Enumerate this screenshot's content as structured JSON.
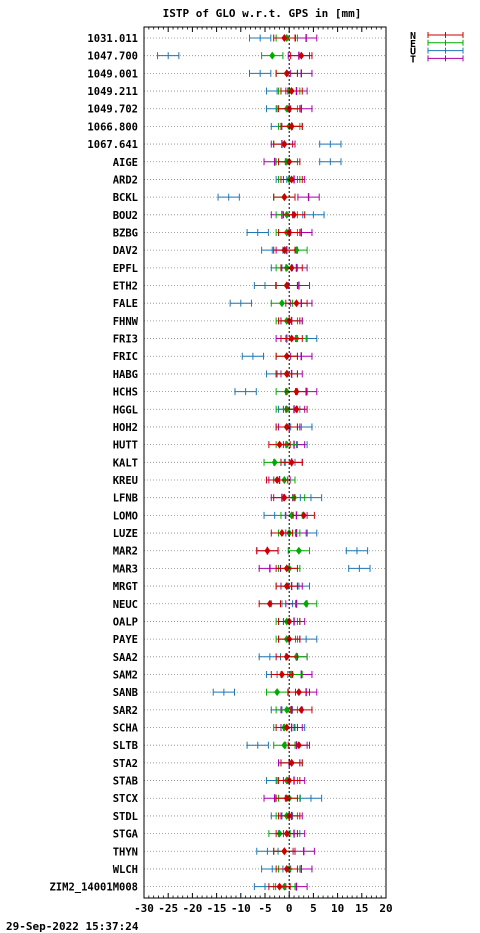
{
  "chart_data": {
    "type": "scatter",
    "title": "ISTP of GLO w.r.t. GPS in [mm]",
    "xlim": [
      -30,
      20
    ],
    "xticks": [
      -30,
      -25,
      -20,
      -15,
      -10,
      -5,
      0,
      5,
      10,
      15,
      20
    ],
    "xtick_labels": [
      "-30",
      "-25",
      "-20",
      "-15",
      "-10",
      "-5",
      "0",
      "5",
      "10",
      "15",
      "20"
    ],
    "grid": "dotted horizontal lines per station",
    "legend_position": "top-right",
    "components": [
      {
        "name": "N",
        "color": "#cc0000"
      },
      {
        "name": "E",
        "color": "#00aa00"
      },
      {
        "name": "U",
        "color": "#1f77b4"
      },
      {
        "name": "T",
        "color": "#aa00aa"
      }
    ],
    "stations": [
      {
        "name": "1031.011",
        "N": -1,
        "E": -0.5,
        "U": -6,
        "T": 3.5
      },
      {
        "name": "1047.700",
        "N": 2.5,
        "E": -3.5,
        "U": -25,
        "T": 2
      },
      {
        "name": "1049.001",
        "N": -0.5,
        "E": -0.5,
        "U": -6,
        "T": 2.5
      },
      {
        "name": "1049.211",
        "N": 0.5,
        "E": 0,
        "U": -2.5,
        "T": 1.5
      },
      {
        "name": "1049.702",
        "N": 0,
        "E": -0.5,
        "U": -2.5,
        "T": 2.5
      },
      {
        "name": "1066.800",
        "N": 0.5,
        "E": 0,
        "U": -1.5,
        "T": 0.5
      },
      {
        "name": "1067.641",
        "N": -1,
        "E": -1,
        "U": 8.5,
        "T": -1.5
      },
      {
        "name": "AIGE",
        "N": 0,
        "E": -0.5,
        "U": 8.5,
        "T": -3
      },
      {
        "name": "ARD2",
        "N": 0.5,
        "E": 0,
        "U": -0.5,
        "T": 1
      },
      {
        "name": "BCKL",
        "N": -1,
        "E": -1,
        "U": -12.5,
        "T": 4
      },
      {
        "name": "BOU2",
        "N": 1,
        "E": -0.5,
        "U": 5,
        "T": -1.5
      },
      {
        "name": "BZBG",
        "N": 0,
        "E": -0.5,
        "U": -6.5,
        "T": 2.5
      },
      {
        "name": "DAV2",
        "N": -1,
        "E": 1.5,
        "U": -3.5,
        "T": -0.5
      },
      {
        "name": "EPFL",
        "N": 0.5,
        "E": -0.5,
        "U": -1.5,
        "T": 1.5
      },
      {
        "name": "ETH2",
        "N": -0.5,
        "E": -0.5,
        "U": -5,
        "T": 2
      },
      {
        "name": "FALE",
        "N": 1.5,
        "E": -1.5,
        "U": -10,
        "T": 2.5
      },
      {
        "name": "FHNW",
        "N": 0,
        "E": -0.5,
        "U": 0.5,
        "T": 0.5
      },
      {
        "name": "FRI3",
        "N": 0.5,
        "E": 1.5,
        "U": 3.5,
        "T": -0.5
      },
      {
        "name": "FRIC",
        "N": -0.5,
        "E": -0.5,
        "U": -7.5,
        "T": 2.5
      },
      {
        "name": "HABG",
        "N": -0.5,
        "E": -0.5,
        "U": -2.5,
        "T": 0.5
      },
      {
        "name": "HCHS",
        "N": 1.5,
        "E": -0.5,
        "U": -9,
        "T": 3.5
      },
      {
        "name": "HGGL",
        "N": 1.5,
        "E": -0.5,
        "U": 0,
        "T": 1
      },
      {
        "name": "HOH2",
        "N": -0.5,
        "E": -0.5,
        "U": 2.5,
        "T": 0
      },
      {
        "name": "HUTT",
        "N": -2,
        "E": -0.5,
        "U": 1.5,
        "T": 1
      },
      {
        "name": "KALT",
        "N": 0.5,
        "E": -3,
        "U": -1,
        "T": 0.5
      },
      {
        "name": "KREU",
        "N": -2.5,
        "E": -1,
        "U": -1,
        "T": -2
      },
      {
        "name": "LFNB",
        "N": -1,
        "E": 1,
        "U": 4.5,
        "T": -1.5
      },
      {
        "name": "LOMO",
        "N": 3,
        "E": 0.5,
        "U": -3,
        "T": 1.5
      },
      {
        "name": "LUZE",
        "N": -1.5,
        "E": 0,
        "U": 3.5,
        "T": 1.5
      },
      {
        "name": "MAR2",
        "N": -4.5,
        "E": 2,
        "U": 14,
        "T": -4.5
      },
      {
        "name": "MAR3",
        "N": -0.5,
        "E": 0,
        "U": 14.5,
        "T": -4
      },
      {
        "name": "MRGT",
        "N": -0.5,
        "E": -0.5,
        "U": 2,
        "T": 0.5
      },
      {
        "name": "NEUC",
        "N": -4,
        "E": 3.5,
        "U": -1.5,
        "T": 1.5
      },
      {
        "name": "OALP",
        "N": 0,
        "E": -0.5,
        "U": 0,
        "T": 1
      },
      {
        "name": "PAYE",
        "N": 0,
        "E": -0.5,
        "U": 3.5,
        "T": 0
      },
      {
        "name": "SAA2",
        "N": -0.5,
        "E": 1.5,
        "U": -4,
        "T": 1.5
      },
      {
        "name": "SAM2",
        "N": -1.5,
        "E": 0.5,
        "U": -2.5,
        "T": 2.5
      },
      {
        "name": "SANB",
        "N": 2,
        "E": -2.5,
        "U": -13.5,
        "T": 3.5
      },
      {
        "name": "SAR2",
        "N": 2.5,
        "E": -0.5,
        "U": -1.5,
        "T": 0.5
      },
      {
        "name": "SCHA",
        "N": -0.5,
        "E": -1,
        "U": 1,
        "T": 0.5
      },
      {
        "name": "SLTB",
        "N": 2,
        "E": -1,
        "U": -6.5,
        "T": 1.5
      },
      {
        "name": "STA2",
        "N": 0.5,
        "E": 0.5,
        "U": 0,
        "T": 0
      },
      {
        "name": "STAB",
        "N": 0,
        "E": -0.5,
        "U": -2.5,
        "T": 1
      },
      {
        "name": "STCX",
        "N": -0.5,
        "E": 0,
        "U": 4.5,
        "T": -3
      },
      {
        "name": "STDL",
        "N": 0,
        "E": -0.5,
        "U": -1.5,
        "T": 0.5
      },
      {
        "name": "STGA",
        "N": -0.5,
        "E": -2,
        "U": 0,
        "T": 1
      },
      {
        "name": "THYN",
        "N": -1,
        "E": -1,
        "U": -4.5,
        "T": 3
      },
      {
        "name": "WLCH",
        "N": -0.5,
        "E": 0,
        "U": -3.5,
        "T": 2.5
      },
      {
        "name": "ZIM2_14001M008",
        "N": -2,
        "E": -1,
        "U": -5,
        "T": 1.5
      }
    ]
  },
  "footer": {
    "timestamp": "29-Sep-2022 15:37:24"
  }
}
